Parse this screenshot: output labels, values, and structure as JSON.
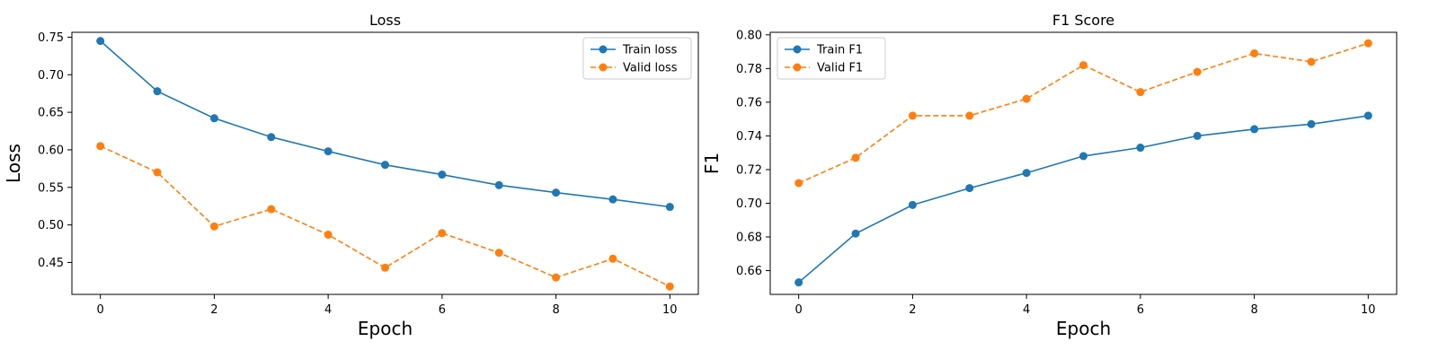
{
  "chart_data": [
    {
      "type": "line",
      "title": "Loss",
      "xlabel": "Epoch",
      "ylabel": "Loss",
      "x": [
        0,
        1,
        2,
        3,
        4,
        5,
        6,
        7,
        8,
        9,
        10
      ],
      "xticks": [
        0,
        2,
        4,
        6,
        8,
        10
      ],
      "yticks": [
        0.45,
        0.5,
        0.55,
        0.6,
        0.65,
        0.7,
        0.75
      ],
      "ytick_labels": [
        "0.45",
        "0.50",
        "0.55",
        "0.60",
        "0.65",
        "0.70",
        "0.75"
      ],
      "xlim": [
        -0.5,
        10.5
      ],
      "ylim": [
        0.4075,
        0.7565
      ],
      "grid": false,
      "legend_position": "upper right",
      "series": [
        {
          "name": "Train loss",
          "style": "solid",
          "color": "#1f77b4",
          "values": [
            0.745,
            0.678,
            0.642,
            0.617,
            0.598,
            0.58,
            0.567,
            0.553,
            0.543,
            0.534,
            0.524
          ]
        },
        {
          "name": "Valid loss",
          "style": "dashed",
          "color": "#ff7f0e",
          "values": [
            0.605,
            0.57,
            0.498,
            0.521,
            0.487,
            0.443,
            0.489,
            0.463,
            0.43,
            0.455,
            0.418
          ]
        }
      ]
    },
    {
      "type": "line",
      "title": "F1 Score",
      "xlabel": "Epoch",
      "ylabel": "F1",
      "x": [
        0,
        1,
        2,
        3,
        4,
        5,
        6,
        7,
        8,
        9,
        10
      ],
      "xticks": [
        0,
        2,
        4,
        6,
        8,
        10
      ],
      "yticks": [
        0.66,
        0.68,
        0.7,
        0.72,
        0.74,
        0.76,
        0.78,
        0.8
      ],
      "ytick_labels": [
        "0.66",
        "0.68",
        "0.70",
        "0.72",
        "0.74",
        "0.76",
        "0.78",
        "0.80"
      ],
      "xlim": [
        -0.5,
        10.5
      ],
      "ylim": [
        0.6459,
        0.8015
      ],
      "grid": false,
      "legend_position": "upper left",
      "series": [
        {
          "name": "Train F1",
          "style": "solid",
          "color": "#1f77b4",
          "values": [
            0.653,
            0.682,
            0.699,
            0.709,
            0.718,
            0.728,
            0.733,
            0.74,
            0.744,
            0.747,
            0.752
          ]
        },
        {
          "name": "Valid F1",
          "style": "dashed",
          "color": "#ff7f0e",
          "values": [
            0.712,
            0.727,
            0.752,
            0.752,
            0.762,
            0.782,
            0.766,
            0.778,
            0.789,
            0.784,
            0.795
          ]
        }
      ]
    }
  ]
}
